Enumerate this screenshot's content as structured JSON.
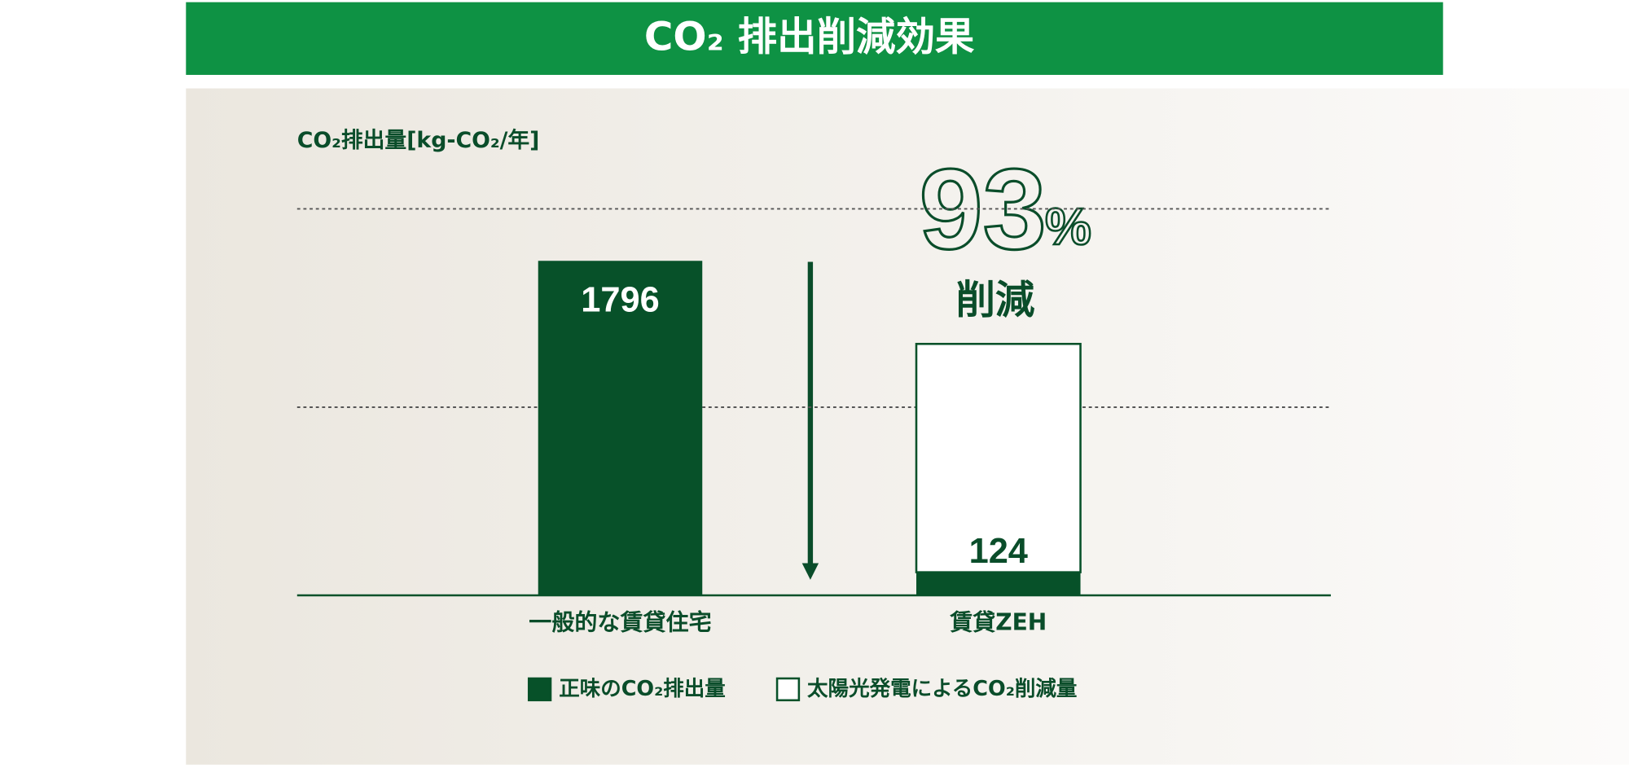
{
  "chart_data": {
    "type": "stacked-bar",
    "title": "CO₂ 排出削減効果",
    "y_label": "CO₂排出量[kg-CO₂/年]",
    "categories": [
      "一般的な賃貸住宅",
      "賃貸ZEH"
    ],
    "series": [
      {
        "name": "正味のCO₂排出量",
        "color": "#075129",
        "values": [
          1796,
          124
        ]
      },
      {
        "name": "太陽光発電によるCO₂削減量",
        "color": "#ffffff",
        "values": [
          null,
          1226
        ]
      }
    ],
    "ylim": [
      0,
      2100
    ],
    "gridlines": [
      1010,
      2075
    ],
    "grid_style": "dotted",
    "annotation_number": "93",
    "annotation_unit": "%",
    "annotation_text": "削減"
  }
}
